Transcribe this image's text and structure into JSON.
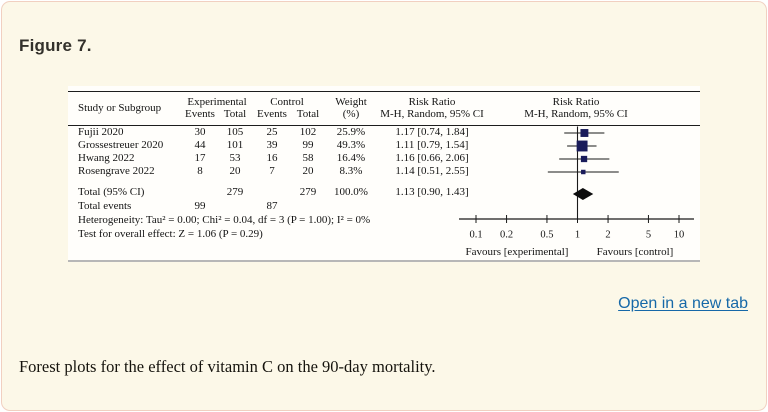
{
  "window": {
    "background": "#fcf8e8",
    "border_color": "#f1d0c1"
  },
  "figure": {
    "label": "Figure 7."
  },
  "links": {
    "open_in_new_tab": "Open in a new tab",
    "color": "#1668a8"
  },
  "caption": {
    "text": "Forest plots for the effect of vitamin C on the 90-day mortality."
  },
  "chart_data": {
    "type": "forest_plot",
    "effect_measure": "Risk Ratio",
    "model": "M-H, Random, 95% CI",
    "header": {
      "study": "Study or Subgroup",
      "experimental": "Experimental",
      "control": "Control",
      "events": "Events",
      "total": "Total",
      "weight": "Weight",
      "weight_unit": "(%)",
      "risk_ratio": "Risk Ratio",
      "method": "M-H, Random, 95% CI"
    },
    "studies": [
      {
        "name": "Fujii 2020",
        "exp_events": 30,
        "exp_total": 105,
        "ctrl_events": 25,
        "ctrl_total": 102,
        "weight": 25.9,
        "weight_label": "25.9%",
        "rr": 1.17,
        "ci_low": 0.74,
        "ci_high": 1.84,
        "rr_label": "1.17 [0.74, 1.84]"
      },
      {
        "name": "Grossestreuer 2020",
        "exp_events": 44,
        "exp_total": 101,
        "ctrl_events": 39,
        "ctrl_total": 99,
        "weight": 49.3,
        "weight_label": "49.3%",
        "rr": 1.11,
        "ci_low": 0.79,
        "ci_high": 1.54,
        "rr_label": "1.11 [0.79, 1.54]"
      },
      {
        "name": "Hwang 2022",
        "exp_events": 17,
        "exp_total": 53,
        "ctrl_events": 16,
        "ctrl_total": 58,
        "weight": 16.4,
        "weight_label": "16.4%",
        "rr": 1.16,
        "ci_low": 0.66,
        "ci_high": 2.06,
        "rr_label": "1.16 [0.66, 2.06]"
      },
      {
        "name": "Rosengrave 2022",
        "exp_events": 8,
        "exp_total": 20,
        "ctrl_events": 7,
        "ctrl_total": 20,
        "weight": 8.3,
        "weight_label": "8.3%",
        "rr": 1.14,
        "ci_low": 0.51,
        "ci_high": 2.55,
        "rr_label": "1.14 [0.51, 2.55]"
      }
    ],
    "total": {
      "label": "Total (95% CI)",
      "exp_total": 279,
      "ctrl_total": 279,
      "weight_label": "100.0%",
      "rr": 1.13,
      "ci_low": 0.9,
      "ci_high": 1.43,
      "rr_label": "1.13 [0.90, 1.43]"
    },
    "total_events": {
      "label": "Total events",
      "exp": 99,
      "ctrl": 87
    },
    "heterogeneity": "Heterogeneity: Tau² = 0.00; Chi² = 0.04, df = 3 (P = 1.00); I² = 0%",
    "overall_effect": "Test for overall effect: Z = 1.06 (P = 0.29)",
    "axis": {
      "scale": "log",
      "ticks": [
        0.1,
        0.2,
        0.5,
        1,
        2,
        5,
        10
      ],
      "tick_labels": [
        "0.1",
        "0.2",
        "0.5",
        "1",
        "2",
        "5",
        "10"
      ],
      "left_label": "Favours [experimental]",
      "right_label": "Favours [control]"
    },
    "colors": {
      "square": "#191b5a",
      "diamond": "#0d0d0d",
      "line": "#1a1a1a"
    }
  }
}
